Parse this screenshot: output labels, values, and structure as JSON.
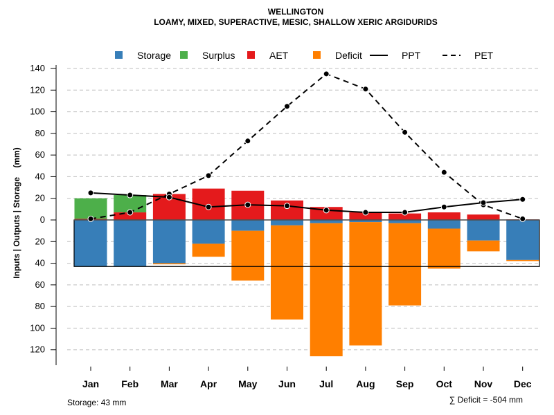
{
  "chart_data": {
    "type": "bar",
    "title": "WELLINGTON",
    "subtitle": "LOAMY, MIXED, SUPERACTIVE, MESIC, SHALLOW XERIC ARGIDURIDS",
    "xlabel": "",
    "ylabel": "Inputs | Outputs | Storage    (mm)",
    "ylim": [
      -130,
      140
    ],
    "yticks": [
      140,
      120,
      100,
      80,
      60,
      40,
      20,
      0,
      -20,
      -40,
      -60,
      -80,
      -100,
      -120
    ],
    "ytick_labels": [
      "140",
      "120",
      "100",
      "80",
      "60",
      "40",
      "20",
      "0",
      "20",
      "40",
      "60",
      "80",
      "100",
      "120"
    ],
    "grid": true,
    "legend_position": "top",
    "categories": [
      "Jan",
      "Feb",
      "Mar",
      "Apr",
      "May",
      "Jun",
      "Jul",
      "Aug",
      "Sep",
      "Oct",
      "Nov",
      "Dec"
    ],
    "legend": [
      {
        "name": "Storage",
        "kind": "box",
        "color": "#377eb8"
      },
      {
        "name": "Surplus",
        "kind": "box",
        "color": "#4daf4a"
      },
      {
        "name": "AET",
        "kind": "box",
        "color": "#e41a1c"
      },
      {
        "name": "Deficit",
        "kind": "box",
        "color": "#ff7f00"
      },
      {
        "name": "PPT",
        "kind": "line-solid",
        "color": "#000000"
      },
      {
        "name": "PET",
        "kind": "line-dashed",
        "color": "#000000"
      }
    ],
    "series": [
      {
        "name": "AET",
        "color": "#e41a1c",
        "values": [
          1,
          7,
          24,
          29,
          27,
          18,
          12,
          7,
          6,
          7,
          5,
          0.5
        ]
      },
      {
        "name": "Surplus",
        "color": "#4daf4a",
        "values": [
          19,
          16,
          0,
          0,
          0,
          0,
          0,
          0,
          0,
          0,
          0,
          0
        ]
      },
      {
        "name": "Storage",
        "color": "#377eb8",
        "values": [
          43,
          43,
          40,
          22,
          10,
          5,
          3,
          2,
          3,
          8,
          19,
          37
        ]
      },
      {
        "name": "Deficit",
        "color": "#ff7f00",
        "values": [
          0,
          0,
          1,
          12,
          46,
          87,
          123,
          114,
          76,
          37,
          10,
          1
        ]
      },
      {
        "name": "PPT",
        "color": "#000000",
        "line": "solid",
        "values": [
          25,
          23,
          21,
          12,
          14,
          13,
          9,
          7,
          7,
          12,
          16,
          19
        ]
      },
      {
        "name": "PET",
        "color": "#000000",
        "line": "dashed",
        "values": [
          1,
          7,
          24,
          41,
          73,
          105,
          135,
          121,
          81,
          44,
          14,
          1
        ]
      }
    ],
    "storage_capacity": 43,
    "annotations": {
      "storage_note": "Storage: 43 mm",
      "deficit_note": "∑ Deficit = -504 mm"
    }
  }
}
